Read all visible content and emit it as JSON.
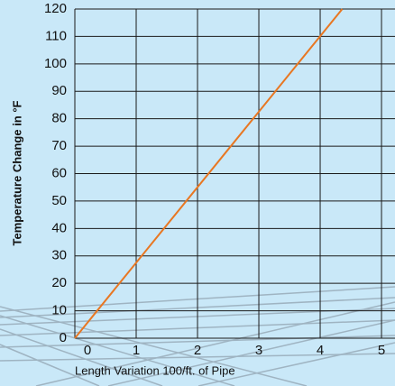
{
  "chart_data": {
    "type": "line",
    "ylabel": "Temperature Change in °F",
    "xlabel": "Length Variation 100/ft. of Pipe",
    "x": [
      0,
      4.36
    ],
    "values": [
      0,
      120
    ],
    "color": "#e87722",
    "xlim": [
      0,
      5.22
    ],
    "xticks": [
      0,
      1,
      2,
      3,
      4,
      5
    ],
    "ylim": [
      0,
      120
    ],
    "yticks": [
      0,
      10,
      20,
      30,
      40,
      50,
      60,
      70,
      80,
      90,
      100,
      110,
      120
    ],
    "grid": true
  }
}
